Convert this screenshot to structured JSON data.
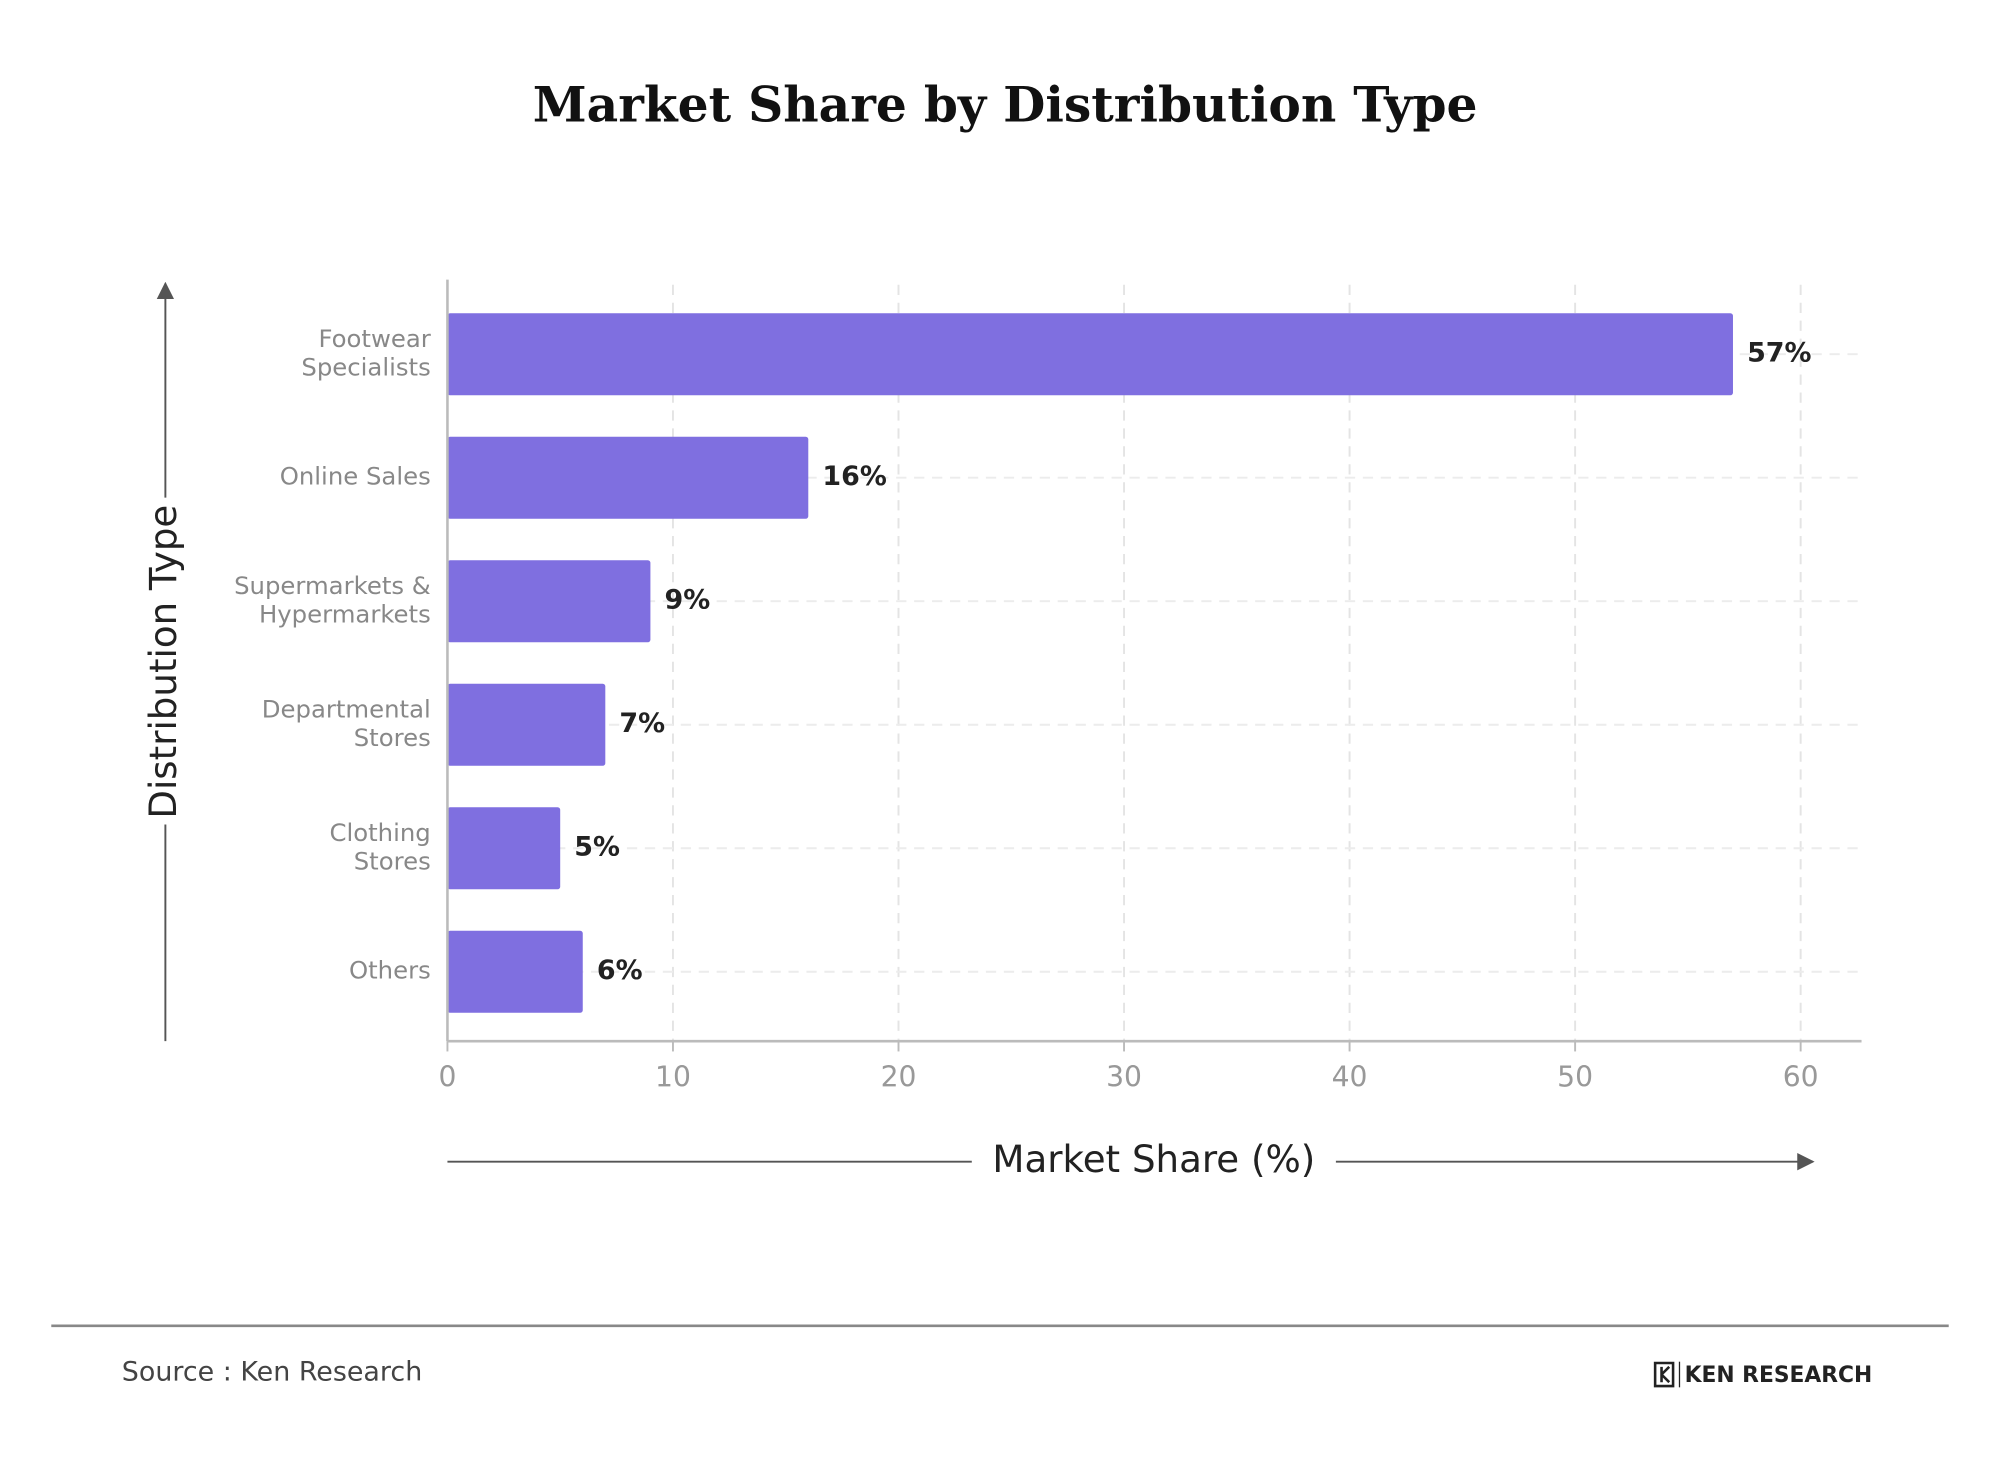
{
  "chart_data": {
    "type": "bar",
    "orientation": "horizontal",
    "title": "Market Share by Distribution Type",
    "categories": [
      "Footwear\nSpecialists",
      "Online Sales",
      "Supermarkets &\nHypermarkets",
      "Departmental\nStores",
      "Clothing\nStores",
      "Others"
    ],
    "values": [
      57,
      16,
      9,
      7,
      5,
      6
    ],
    "value_labels": [
      "57%",
      "16%",
      "9%",
      "7%",
      "5%",
      "6%"
    ],
    "color": "#7f6fe0",
    "xlabel": "Market Share (%)",
    "ylabel": "Distribution Type",
    "xlim": [
      0,
      62.7
    ],
    "xticks": [
      0,
      10,
      20,
      30,
      40,
      50,
      60
    ],
    "grid": true
  },
  "footer": {
    "source": "Source : Ken Research",
    "brand": "KEN RESEARCH"
  }
}
